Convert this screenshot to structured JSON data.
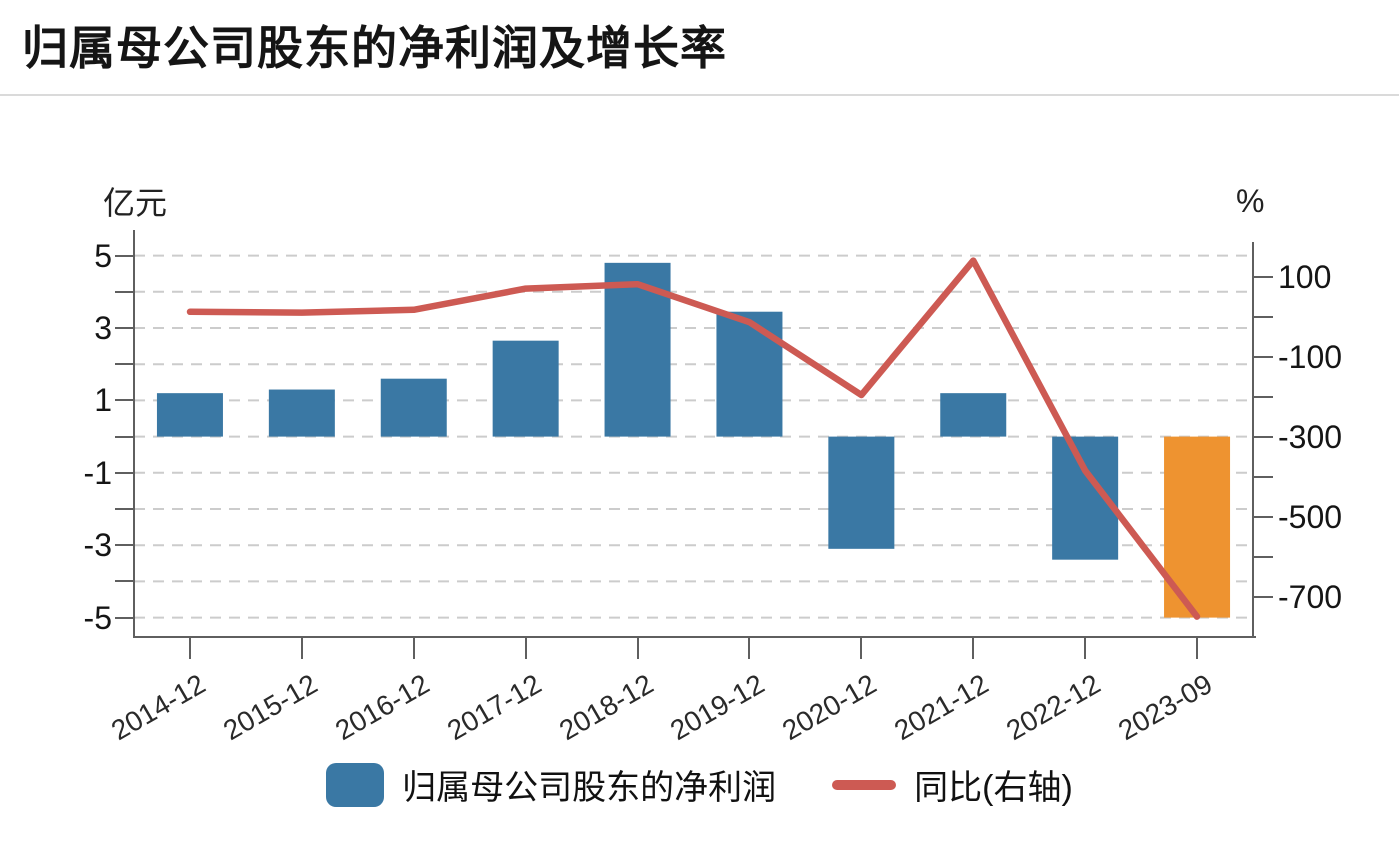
{
  "title": "归属母公司股东的净利润及增长率",
  "chart_data": {
    "type": "bar+line dual-axis",
    "categories": [
      "2014-12",
      "2015-12",
      "2016-12",
      "2017-12",
      "2018-12",
      "2019-12",
      "2020-12",
      "2021-12",
      "2022-12",
      "2023-09"
    ],
    "series": [
      {
        "name": "归属母公司股东的净利润",
        "type": "bar",
        "axis": "left",
        "unit": "亿元",
        "values": [
          1.2,
          1.3,
          1.6,
          2.65,
          4.8,
          3.45,
          -3.1,
          1.2,
          -3.4,
          -5.0
        ]
      },
      {
        "name": "同比(右轴)",
        "type": "line",
        "axis": "right",
        "unit": "%",
        "values": [
          12,
          10,
          17,
          70,
          81,
          -14,
          -196,
          140,
          -385,
          -750
        ]
      }
    ],
    "bar_colors": [
      "#3a78a4",
      "#3a78a4",
      "#3a78a4",
      "#3a78a4",
      "#3a78a4",
      "#3a78a4",
      "#3a78a4",
      "#3a78a4",
      "#3a78a4",
      "#ee9330"
    ],
    "line_color": "#cd5a53",
    "left_axis": {
      "title": "亿元",
      "min": -5,
      "max": 5,
      "tick_interval": 1,
      "labeled_ticks": [
        5,
        3,
        1,
        -1,
        -3,
        -5
      ]
    },
    "right_axis": {
      "title": "%",
      "min": -700,
      "max": 100,
      "tick_interval": 100,
      "labeled_ticks": [
        100,
        -100,
        -300,
        -500,
        -700
      ]
    },
    "grid": "horizontal dashed gridlines at every left-axis unit",
    "legend_position": "bottom center"
  },
  "legend": [
    {
      "label": "归属母公司股东的净利润",
      "swatch": "bar",
      "color": "#3a78a4"
    },
    {
      "label": "同比(右轴)",
      "swatch": "line",
      "color": "#cd5a53"
    }
  ],
  "colors": {
    "bar_blue": "#3a78a4",
    "bar_orange": "#ee9330",
    "line_red": "#cd5a53",
    "gridline": "#cccccc",
    "axis": "#5f5f5f",
    "text": "#151515",
    "divider": "#dadada",
    "background": "#ffffff"
  }
}
